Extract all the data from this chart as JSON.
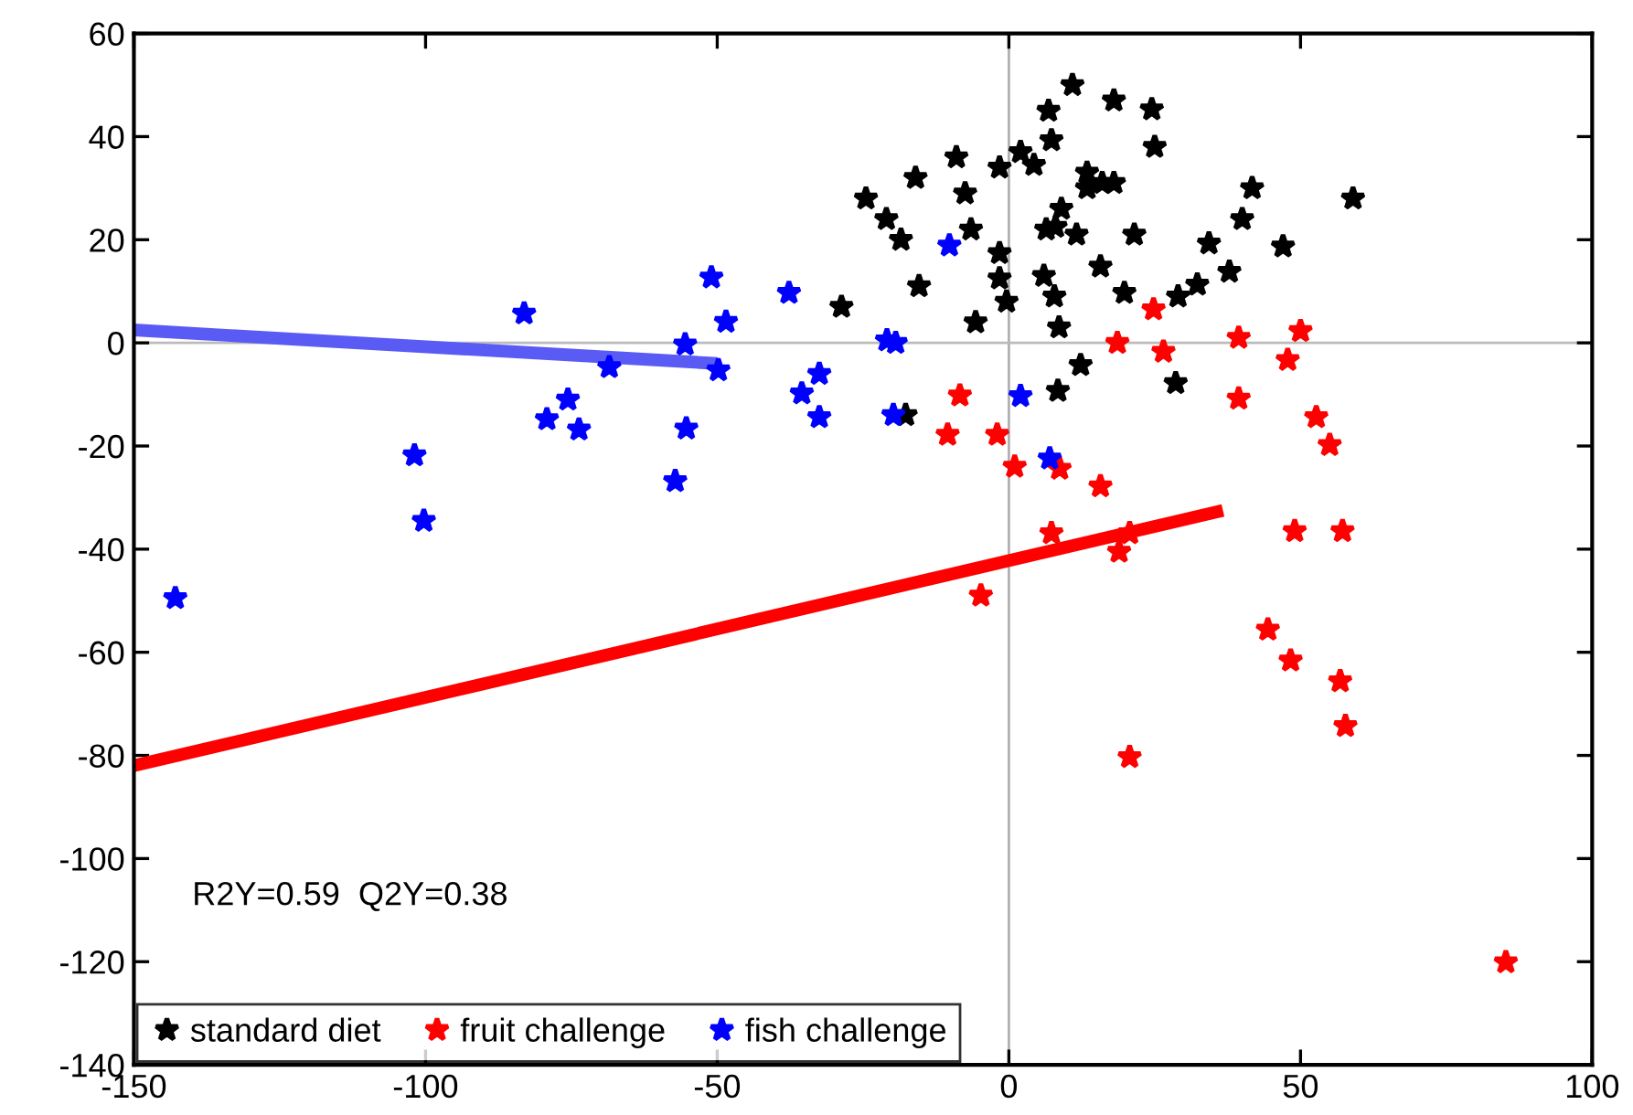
{
  "chart_data": {
    "type": "scatter",
    "xlim": [
      -150,
      100
    ],
    "ylim": [
      -140,
      60
    ],
    "xticks": [
      -150,
      -100,
      -50,
      0,
      50,
      100
    ],
    "yticks": [
      -140,
      -120,
      -100,
      -80,
      -60,
      -40,
      -20,
      0,
      20,
      40,
      60
    ],
    "grid": false,
    "legend": "bottom left",
    "marker": "star",
    "annotations": [
      "R2Y=0.59  Q2Y=0.38"
    ],
    "ref_lines": [
      {
        "axis": "x",
        "value": 0,
        "color": "#b0b0b0"
      },
      {
        "axis": "y",
        "value": 0,
        "color": "#bbbbbb"
      }
    ],
    "series": [
      {
        "name": "standard diet",
        "color": "#000000",
        "x": [
          10.9,
          6.8,
          18,
          24.5,
          25,
          7.3,
          -1.6,
          2,
          4.3,
          -9,
          -16,
          -7.5,
          -24.5,
          -21,
          -18.5,
          -6.5,
          -1.6,
          -1.6,
          -0.4,
          -5.7,
          -15.4,
          -28.7,
          -17.7,
          9,
          6.4,
          8,
          11.6,
          13.4,
          16,
          13.4,
          18,
          21.5,
          6,
          7.8,
          15.7,
          19.8,
          8.6,
          29,
          32.3,
          34.3,
          37.8,
          40,
          41.7,
          47,
          59,
          12.3,
          8.4,
          28.6
        ],
        "values": [
          50,
          45,
          47,
          45.3,
          38,
          39.3,
          34,
          37,
          34.5,
          36,
          32,
          29,
          28,
          24,
          20,
          22,
          17.4,
          12.5,
          8,
          4,
          11,
          7,
          -14,
          26,
          22,
          22.5,
          21,
          33,
          31,
          30,
          31,
          21,
          13,
          9,
          14.8,
          9.7,
          3,
          9,
          11.3,
          19.3,
          13.8,
          24,
          30,
          18.7,
          28,
          -4.3,
          -9.3,
          -7.8
        ]
      },
      {
        "name": "fruit challenge",
        "color": "#ff0000",
        "x": [
          24.8,
          18.6,
          26.5,
          39.4,
          50,
          47.8,
          39.4,
          -8.4,
          -10.5,
          -2,
          1,
          8.7,
          15.7,
          52.7,
          55,
          7.3,
          20.7,
          18.9,
          -4.8,
          49,
          57.2,
          44.4,
          48.3,
          56.8,
          57.7,
          20.7,
          85.2
        ],
        "values": [
          6.5,
          0,
          -1.7,
          1,
          2.3,
          -3.3,
          -10.8,
          -10.2,
          -17.8,
          -17.8,
          -24,
          -24.4,
          -27.8,
          -14.4,
          -19.8,
          -36.9,
          -36.9,
          -40.5,
          -49,
          -36.5,
          -36.5,
          -55.6,
          -61.6,
          -65.6,
          -74.3,
          -80.3,
          -120.1
        ]
      },
      {
        "name": "fish challenge",
        "color": "#0000ff",
        "x": [
          -142.9,
          -101.9,
          -100.3,
          -83.1,
          -79.2,
          -75.6,
          -73.7,
          -68.5,
          -57.2,
          -55.5,
          -55.3,
          -51,
          -49.8,
          -48.5,
          -37.7,
          -35.5,
          -32.5,
          -32.5,
          -20.9,
          -19.4,
          -19.8,
          -10.2,
          2,
          7
        ],
        "values": [
          -49.5,
          -21.8,
          -34.5,
          5.7,
          -14.8,
          -11,
          -16.8,
          -4.7,
          -26.8,
          -0.3,
          -16.6,
          12.7,
          -5.3,
          4.1,
          9.7,
          -9.8,
          -6,
          -14.4,
          0.5,
          0,
          -14,
          18.9,
          -10.3,
          -22.4
        ]
      },
      {
        "type": "line",
        "color": "#5a5af5",
        "marker": "none",
        "x": [
          -150,
          -50
        ],
        "values": [
          2.5,
          -4
        ]
      },
      {
        "type": "line",
        "color": "#ff0000",
        "marker": "none",
        "x": [
          -150,
          36.7
        ],
        "values": [
          -82,
          -32.5
        ]
      }
    ]
  }
}
